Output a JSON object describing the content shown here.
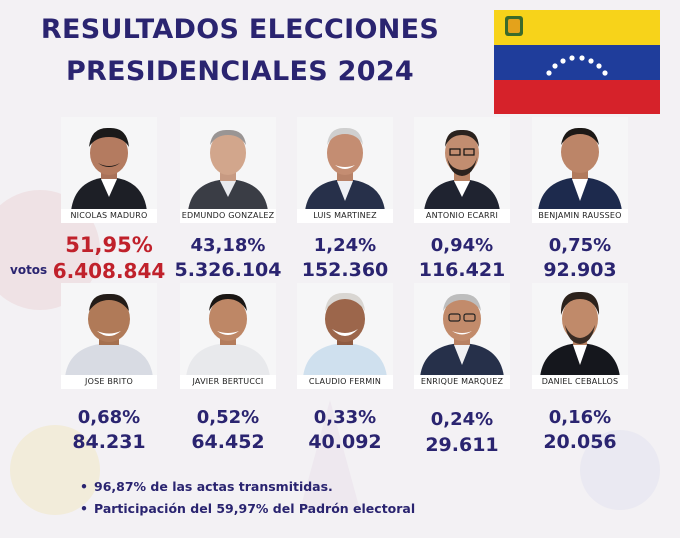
{
  "title_line1": "RESULTADOS ELECCIONES",
  "title_line2": "PRESIDENCIALES 2024",
  "votos_label": "votos",
  "colors": {
    "title": "#2a2470",
    "winner": "#c0212b",
    "flag_yellow": "#f7d31a",
    "flag_blue": "#1f3d9b",
    "flag_red": "#d6222a"
  },
  "candidates": [
    {
      "name": "NICOLAS MADURO",
      "pct": "51,95%",
      "votes": "6.408.844"
    },
    {
      "name": "EDMUNDO GONZALEZ",
      "pct": "43,18%",
      "votes": "5.326.104"
    },
    {
      "name": "LUIS MARTINEZ",
      "pct": "1,24%",
      "votes": "152.360"
    },
    {
      "name": "ANTONIO ECARRI",
      "pct": "0,94%",
      "votes": "116.421"
    },
    {
      "name": "BENJAMIN RAUSSEO",
      "pct": "0,75%",
      "votes": "92.903"
    },
    {
      "name": "JOSE BRITO",
      "pct": "0,68%",
      "votes": "84.231"
    },
    {
      "name": "JAVIER BERTUCCI",
      "pct": "0,52%",
      "votes": "64.452"
    },
    {
      "name": "CLAUDIO FERMIN",
      "pct": "0,33%",
      "votes": "40.092"
    },
    {
      "name": "ENRIQUE MARQUEZ",
      "pct": "0,24%",
      "votes": "29.611"
    },
    {
      "name": "DANIEL CEBALLOS",
      "pct": "0,16%",
      "votes": "20.056"
    }
  ],
  "notes": [
    "96,87% de las actas transmitidas.",
    "Participación del 59,97% del Padrón electoral"
  ]
}
